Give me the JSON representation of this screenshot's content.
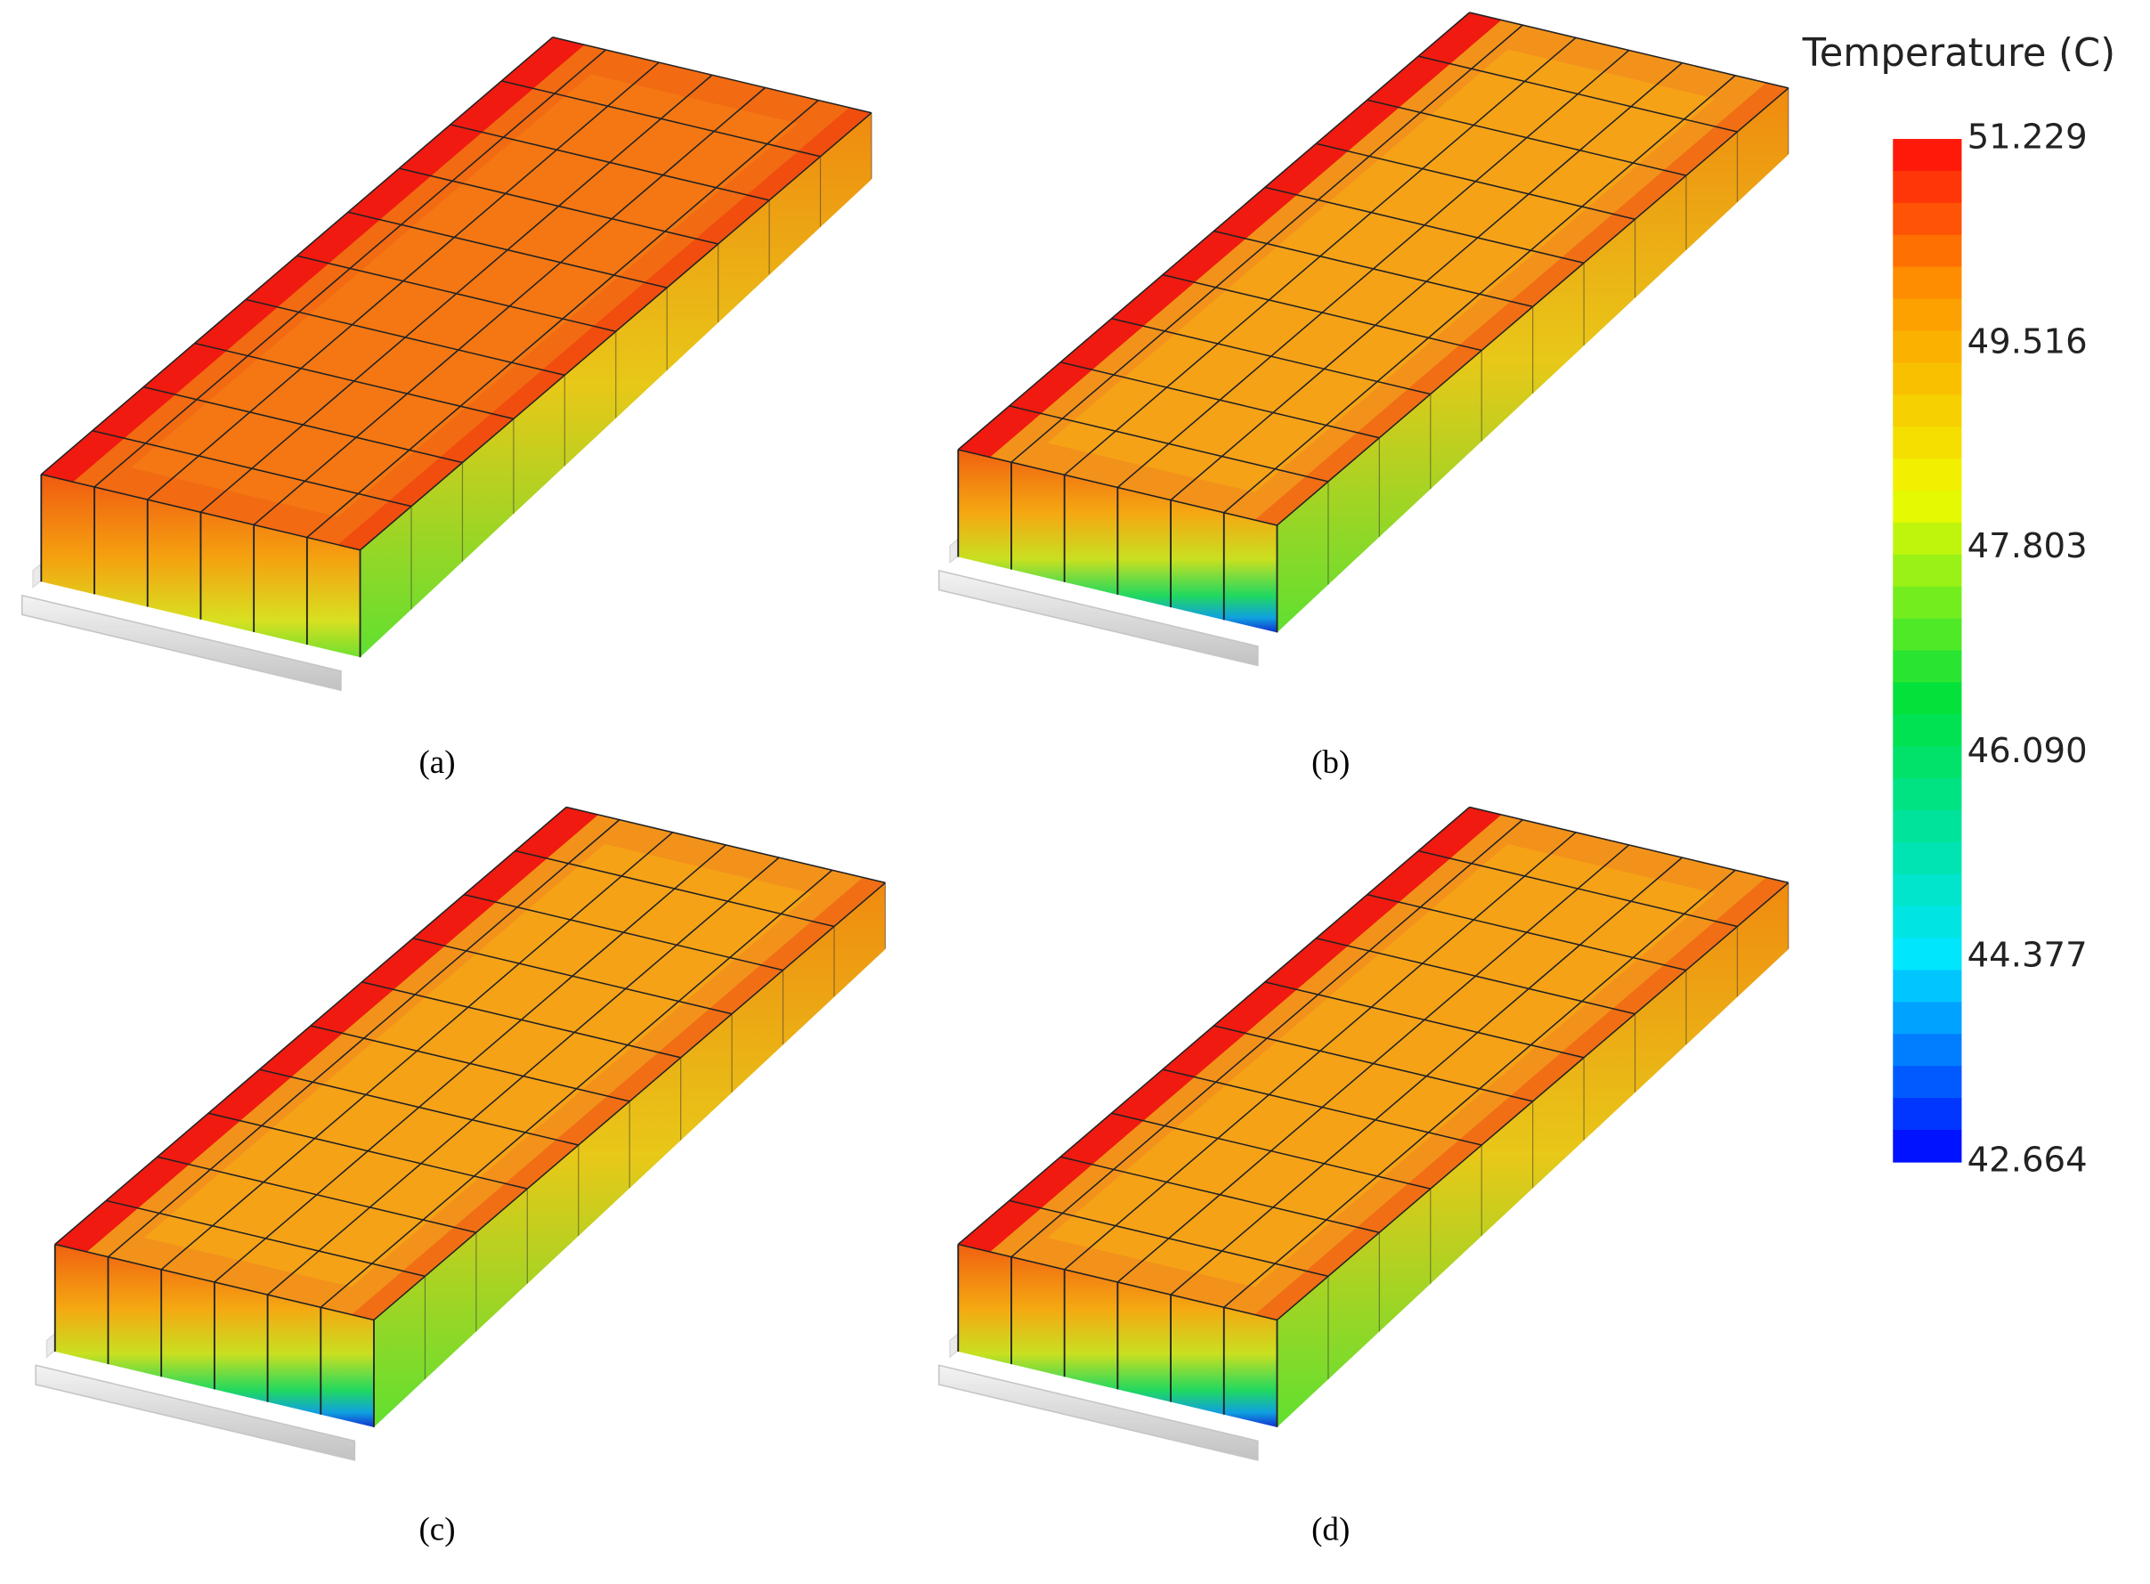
{
  "figure": {
    "panels": [
      {
        "label": "(a)"
      },
      {
        "label": "(b)"
      },
      {
        "label": "(c)"
      },
      {
        "label": "(d)"
      }
    ],
    "colorbar": {
      "title": "Temperature (C)",
      "lim": [
        42.664,
        51.229
      ],
      "ticks": [
        51.229,
        49.516,
        47.803,
        {
          "value": 46.09,
          "label": "46.090"
        },
        44.377,
        42.664
      ]
    }
  }
}
